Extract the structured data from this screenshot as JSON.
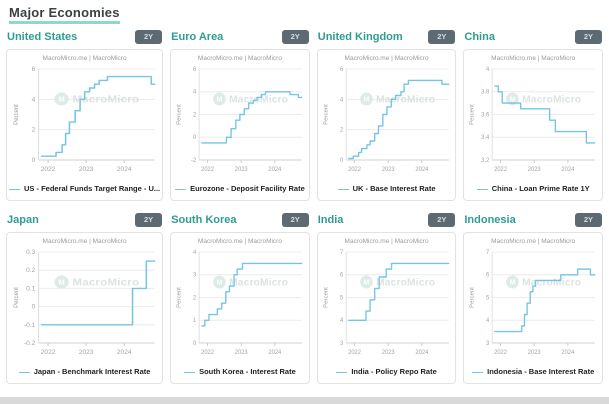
{
  "page": {
    "title": "Major Economies",
    "accent_color": "#2f9d91",
    "line_color": "#74c4e4",
    "underline_color": "#8fd8ca"
  },
  "watermark": {
    "source_label": "MacroMicro.me | MacroMicro",
    "logo_text": "MacroMicro"
  },
  "panels": [
    {
      "title": "United States",
      "button_label": "2Y",
      "header": "MacroMicro.me | MacroMicro",
      "legend": "US - Federal Funds Target Range - U..."
    },
    {
      "title": "Euro Area",
      "button_label": "2Y",
      "header": "MacroMicro.me | MacroMicro",
      "legend": "Eurozone - Deposit Facility Rate"
    },
    {
      "title": "United Kingdom",
      "button_label": "2Y",
      "header": "MacroMicro.me | MacroMicro",
      "legend": "UK - Base Interest Rate"
    },
    {
      "title": "China",
      "button_label": "2Y",
      "header": "MacroMicro.me | MacroMicro",
      "legend": "China - Loan Prime Rate 1Y"
    },
    {
      "title": "Japan",
      "button_label": "2Y",
      "header": "MacroMicro.me | MacroMicro",
      "legend": "Japan - Benchmark Interest Rate"
    },
    {
      "title": "South Korea",
      "button_label": "2Y",
      "header": "MacroMicro.me | MacroMicro",
      "legend": "South Korea - Interest Rate"
    },
    {
      "title": "India",
      "button_label": "2Y",
      "header": "MacroMicro.me | MacroMicro",
      "legend": "India - Policy Repo Rate"
    },
    {
      "title": "Indonesia",
      "button_label": "2Y",
      "header": "MacroMicro.me | MacroMicro",
      "legend": "Indonesia - Base Interest Rate"
    }
  ],
  "chart_data": [
    {
      "type": "line",
      "title": "United States",
      "ylabel": "Percent",
      "xlim": [
        2021.75,
        2024.8
      ],
      "ylim": [
        0,
        6
      ],
      "yticks": [
        0,
        2,
        4,
        6
      ],
      "ytick_labels": [
        "0",
        "2",
        "4",
        "6"
      ],
      "xticks": [
        2022,
        2023,
        2024
      ],
      "xtick_labels": [
        "2022",
        "2023",
        "2024"
      ],
      "series": [
        {
          "name": "US - Federal Funds Target Range - Upper Limit",
          "points": [
            [
              2021.83,
              0.25
            ],
            [
              2022.21,
              0.5
            ],
            [
              2022.37,
              1.0
            ],
            [
              2022.46,
              1.75
            ],
            [
              2022.56,
              2.5
            ],
            [
              2022.71,
              3.25
            ],
            [
              2022.84,
              4.0
            ],
            [
              2022.96,
              4.5
            ],
            [
              2023.09,
              4.75
            ],
            [
              2023.22,
              5.0
            ],
            [
              2023.34,
              5.25
            ],
            [
              2023.56,
              5.5
            ],
            [
              2024.71,
              5.0
            ]
          ]
        }
      ]
    },
    {
      "type": "line",
      "title": "Euro Area",
      "ylabel": "Percent",
      "xlim": [
        2021.75,
        2024.8
      ],
      "ylim": [
        -2,
        6
      ],
      "yticks": [
        -2,
        0,
        2,
        4,
        6
      ],
      "ytick_labels": [
        "-2",
        "0",
        "2",
        "4",
        "6"
      ],
      "xticks": [
        2022,
        2023,
        2024
      ],
      "xtick_labels": [
        "2022",
        "2023",
        "2024"
      ],
      "series": [
        {
          "name": "Eurozone - Deposit Facility Rate",
          "points": [
            [
              2021.83,
              -0.5
            ],
            [
              2022.56,
              0.0
            ],
            [
              2022.7,
              0.75
            ],
            [
              2022.84,
              1.5
            ],
            [
              2022.96,
              2.0
            ],
            [
              2023.09,
              2.5
            ],
            [
              2023.22,
              3.0
            ],
            [
              2023.36,
              3.25
            ],
            [
              2023.47,
              3.5
            ],
            [
              2023.6,
              3.75
            ],
            [
              2023.72,
              4.0
            ],
            [
              2024.45,
              3.75
            ],
            [
              2024.7,
              3.5
            ]
          ]
        }
      ]
    },
    {
      "type": "line",
      "title": "United Kingdom",
      "ylabel": "Percent",
      "xlim": [
        2021.75,
        2024.8
      ],
      "ylim": [
        0,
        6
      ],
      "yticks": [
        0,
        2,
        4,
        6
      ],
      "ytick_labels": [
        "0",
        "2",
        "4",
        "6"
      ],
      "xticks": [
        2022,
        2023,
        2024
      ],
      "xtick_labels": [
        "2022",
        "2023",
        "2024"
      ],
      "series": [
        {
          "name": "UK - Base Interest Rate",
          "points": [
            [
              2021.83,
              0.1
            ],
            [
              2021.96,
              0.25
            ],
            [
              2022.12,
              0.5
            ],
            [
              2022.21,
              0.75
            ],
            [
              2022.37,
              1.0
            ],
            [
              2022.46,
              1.25
            ],
            [
              2022.6,
              1.75
            ],
            [
              2022.71,
              2.25
            ],
            [
              2022.84,
              3.0
            ],
            [
              2022.96,
              3.5
            ],
            [
              2023.09,
              4.0
            ],
            [
              2023.22,
              4.25
            ],
            [
              2023.38,
              4.5
            ],
            [
              2023.47,
              5.0
            ],
            [
              2023.6,
              5.25
            ],
            [
              2024.6,
              5.0
            ]
          ]
        }
      ]
    },
    {
      "type": "line",
      "title": "China",
      "ylabel": "Percent",
      "xlim": [
        2021.75,
        2024.8
      ],
      "ylim": [
        3.2,
        4.0
      ],
      "yticks": [
        3.2,
        3.4,
        3.6,
        3.8,
        4.0
      ],
      "ytick_labels": [
        "3.2",
        "3.4",
        "3.6",
        "3.8",
        "4"
      ],
      "xticks": [
        2022,
        2023,
        2024
      ],
      "xtick_labels": [
        "2022",
        "2023",
        "2024"
      ],
      "series": [
        {
          "name": "China - Loan Prime Rate 1Y",
          "points": [
            [
              2021.83,
              3.85
            ],
            [
              2021.93,
              3.8
            ],
            [
              2022.05,
              3.7
            ],
            [
              2022.6,
              3.65
            ],
            [
              2023.46,
              3.55
            ],
            [
              2023.63,
              3.45
            ],
            [
              2024.55,
              3.35
            ]
          ]
        }
      ]
    },
    {
      "type": "line",
      "title": "Japan",
      "ylabel": "Percent",
      "xlim": [
        2021.75,
        2024.8
      ],
      "ylim": [
        -0.2,
        0.3
      ],
      "yticks": [
        -0.2,
        -0.1,
        0,
        0.1,
        0.2,
        0.3
      ],
      "ytick_labels": [
        "-0.2",
        "-0.1",
        "0",
        "0.1",
        "0.2",
        "0.3"
      ],
      "xticks": [
        2022,
        2023,
        2024
      ],
      "xtick_labels": [
        "2022",
        "2023",
        "2024"
      ],
      "series": [
        {
          "name": "Japan - Benchmark Interest Rate",
          "points": [
            [
              2021.83,
              -0.1
            ],
            [
              2024.22,
              0.1
            ],
            [
              2024.58,
              0.25
            ]
          ]
        }
      ]
    },
    {
      "type": "line",
      "title": "South Korea",
      "ylabel": "Percent",
      "xlim": [
        2021.75,
        2024.8
      ],
      "ylim": [
        0,
        4
      ],
      "yticks": [
        0,
        1,
        2,
        3,
        4
      ],
      "ytick_labels": [
        "0",
        "1",
        "2",
        "3",
        "4"
      ],
      "xticks": [
        2022,
        2023,
        2024
      ],
      "xtick_labels": [
        "2022",
        "2023",
        "2024"
      ],
      "series": [
        {
          "name": "South Korea - Interest Rate",
          "points": [
            [
              2021.83,
              0.75
            ],
            [
              2021.92,
              1.0
            ],
            [
              2022.04,
              1.25
            ],
            [
              2022.29,
              1.5
            ],
            [
              2022.42,
              1.75
            ],
            [
              2022.54,
              2.25
            ],
            [
              2022.65,
              2.5
            ],
            [
              2022.79,
              3.0
            ],
            [
              2022.88,
              3.25
            ],
            [
              2023.04,
              3.5
            ]
          ]
        }
      ]
    },
    {
      "type": "line",
      "title": "India",
      "ylabel": "Percent",
      "xlim": [
        2021.75,
        2024.8
      ],
      "ylim": [
        3,
        7
      ],
      "yticks": [
        3,
        4,
        5,
        6,
        7
      ],
      "ytick_labels": [
        "3",
        "4",
        "5",
        "6",
        "7"
      ],
      "xticks": [
        2022,
        2023,
        2024
      ],
      "xtick_labels": [
        "2022",
        "2023",
        "2024"
      ],
      "series": [
        {
          "name": "India - Policy Repo Rate",
          "points": [
            [
              2021.83,
              4.0
            ],
            [
              2022.34,
              4.4
            ],
            [
              2022.46,
              4.9
            ],
            [
              2022.6,
              5.4
            ],
            [
              2022.73,
              5.9
            ],
            [
              2022.94,
              6.25
            ],
            [
              2023.1,
              6.5
            ]
          ]
        }
      ]
    },
    {
      "type": "line",
      "title": "Indonesia",
      "ylabel": "Percent",
      "xlim": [
        2021.75,
        2024.8
      ],
      "ylim": [
        3,
        7
      ],
      "yticks": [
        3,
        4,
        5,
        6,
        7
      ],
      "ytick_labels": [
        "3",
        "4",
        "5",
        "6",
        "7"
      ],
      "xticks": [
        2022,
        2023,
        2024
      ],
      "xtick_labels": [
        "2022",
        "2023",
        "2024"
      ],
      "series": [
        {
          "name": "Indonesia - Base Interest Rate",
          "points": [
            [
              2021.83,
              3.5
            ],
            [
              2022.63,
              3.75
            ],
            [
              2022.71,
              4.25
            ],
            [
              2022.79,
              4.75
            ],
            [
              2022.88,
              5.25
            ],
            [
              2022.96,
              5.5
            ],
            [
              2023.04,
              5.75
            ],
            [
              2023.79,
              6.0
            ],
            [
              2024.29,
              6.25
            ],
            [
              2024.67,
              6.0
            ]
          ]
        }
      ]
    }
  ]
}
